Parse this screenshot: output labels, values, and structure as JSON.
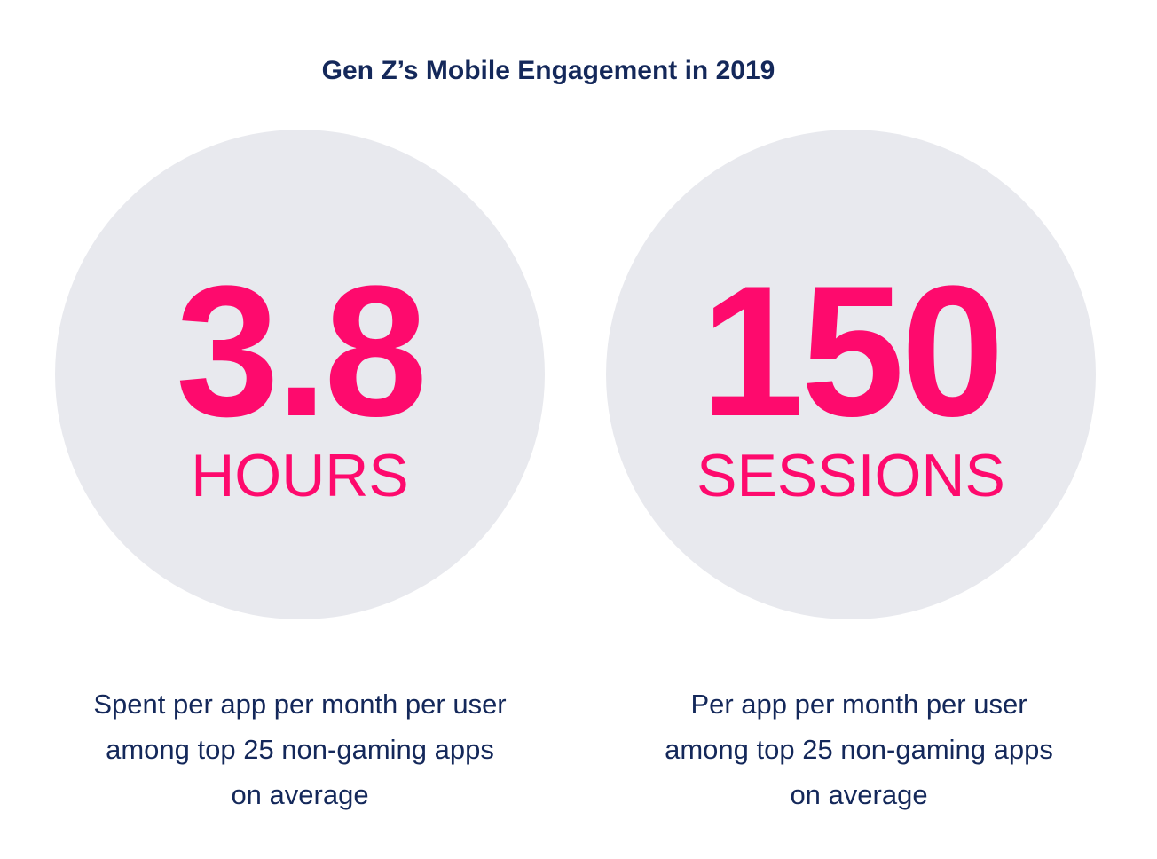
{
  "title": "Gen Z’s Mobile Engagement in 2019",
  "stats": [
    {
      "value": "3.8",
      "unit": "HOURS",
      "caption": [
        "Spent per app per month per user",
        "among top 25 non-gaming apps",
        "on average"
      ]
    },
    {
      "value": "150",
      "unit": "SESSIONS",
      "caption": [
        "Per app per month per user",
        "among top 25 non-gaming apps",
        "on average"
      ]
    }
  ],
  "colors": {
    "accent": "#fe0a6d",
    "text": "#14285a",
    "circle": "#e8e9ee"
  }
}
